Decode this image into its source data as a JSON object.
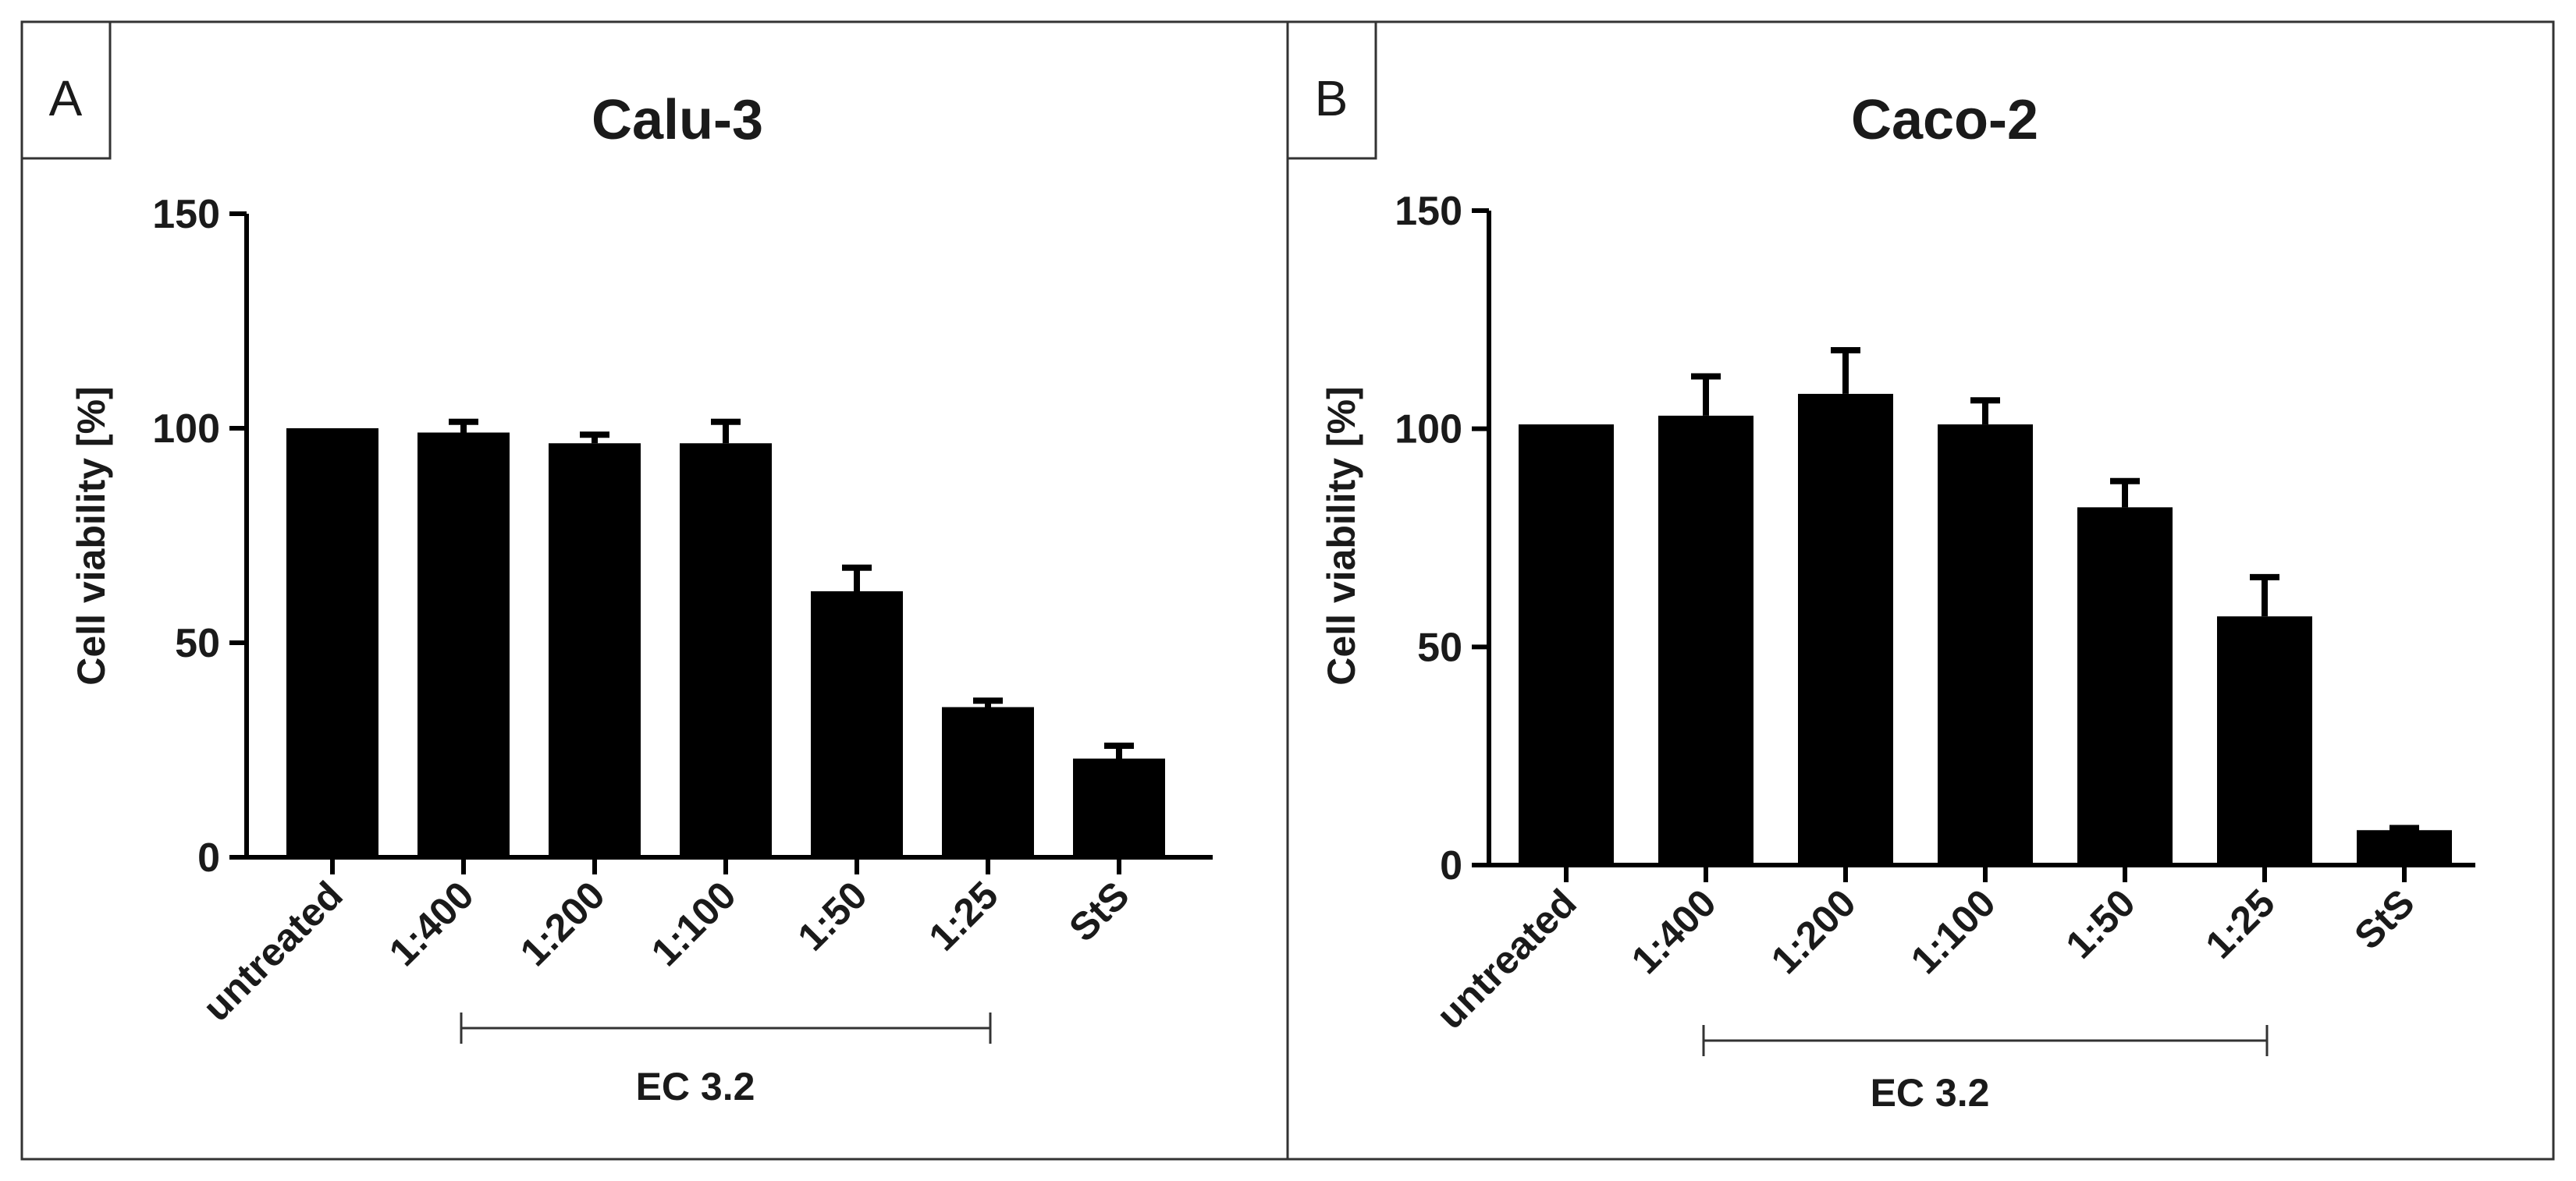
{
  "chart_data": [
    {
      "type": "bar",
      "panel_label": "A",
      "title": "Calu-3",
      "xlabel": "",
      "ylabel": "Cell viability [%]",
      "ylim": [
        0,
        150
      ],
      "yticks": [
        "0",
        "50",
        "100",
        "150"
      ],
      "categories": [
        "untreated",
        "1:400",
        "1:200",
        "1:100",
        "1:50",
        "1:25",
        "StS"
      ],
      "values": [
        100,
        99,
        96.5,
        96.5,
        62,
        35,
        23
      ],
      "error_upper": [
        0,
        2.5,
        2,
        5,
        5.5,
        1.5,
        3
      ],
      "group_label": "EC 3.2",
      "group_span": [
        "1:400",
        "1:25"
      ]
    },
    {
      "type": "bar",
      "panel_label": "B",
      "title": "Caco-2",
      "xlabel": "",
      "ylabel": "Cell viability [%]",
      "ylim": [
        0,
        150
      ],
      "yticks": [
        "0",
        "50",
        "100",
        "150"
      ],
      "categories": [
        "untreated",
        "1:400",
        "1:200",
        "1:100",
        "1:50",
        "1:25",
        "StS"
      ],
      "values": [
        101,
        103,
        108,
        101,
        82,
        57,
        8
      ],
      "error_upper": [
        0,
        9,
        10,
        5.5,
        6,
        9,
        0.5
      ],
      "group_label": "EC 3.2",
      "group_span": [
        "1:400",
        "1:25"
      ]
    }
  ]
}
